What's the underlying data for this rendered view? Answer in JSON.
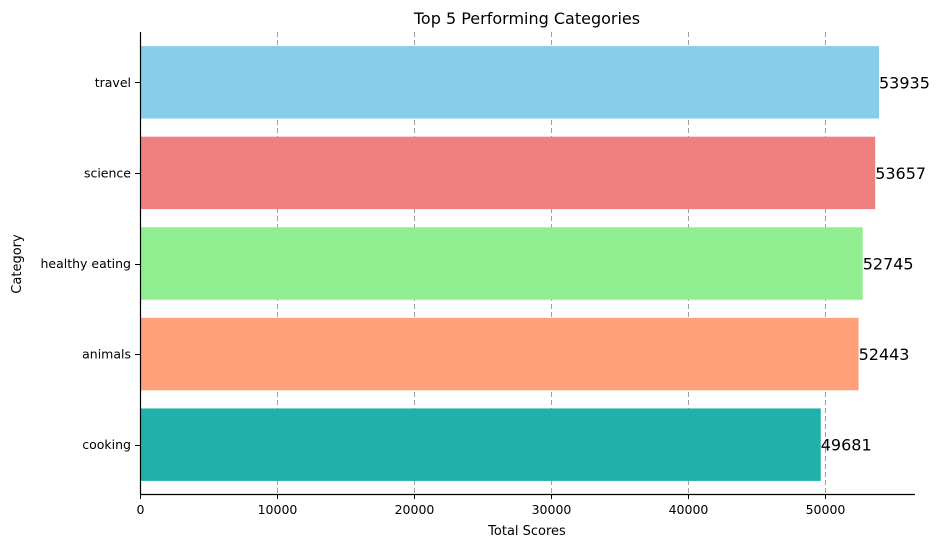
{
  "chart_data": {
    "type": "bar",
    "orientation": "horizontal",
    "title": "Top 5 Performing Categories",
    "xlabel": "Total Scores",
    "ylabel": "Category",
    "categories": [
      "travel",
      "science",
      "healthy eating",
      "animals",
      "cooking"
    ],
    "values": [
      53935,
      53657,
      52745,
      52443,
      49681
    ],
    "value_labels": [
      "53935",
      "53657",
      "52745",
      "52443",
      "49681"
    ],
    "colors": [
      "#87ceeb",
      "#f08080",
      "#90ee90",
      "#ffa07a",
      "#20b2aa"
    ],
    "xticks": [
      0,
      10000,
      20000,
      30000,
      40000,
      50000
    ],
    "xtick_labels": [
      "0",
      "10000",
      "20000",
      "30000",
      "40000",
      "50000"
    ],
    "xlim": [
      0,
      56600
    ],
    "grid": "x-dashed",
    "legend": "none"
  }
}
